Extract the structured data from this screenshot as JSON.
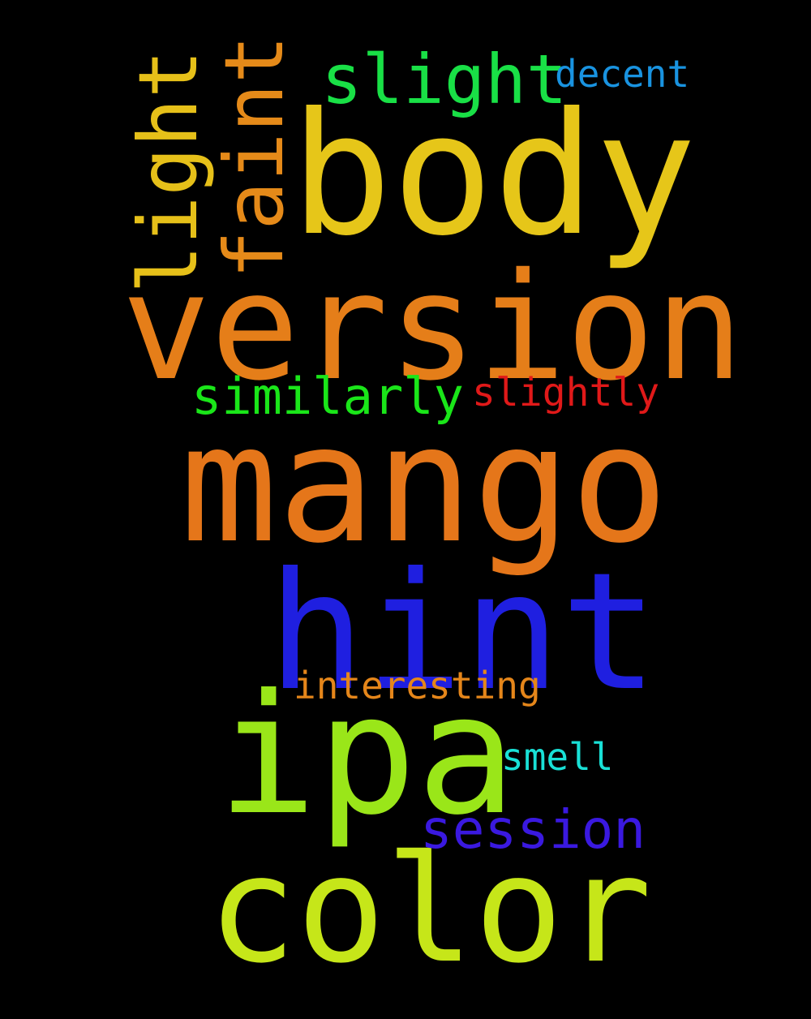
{
  "words": [
    {
      "key": "body",
      "text": "body",
      "color": "#e6c619"
    },
    {
      "key": "version",
      "text": "version",
      "color": "#e57e19"
    },
    {
      "key": "mango",
      "text": "mango",
      "color": "#e5761a"
    },
    {
      "key": "hint",
      "text": "hint",
      "color": "#1f1fe0"
    },
    {
      "key": "ipa",
      "text": "ipa",
      "color": "#9ae619"
    },
    {
      "key": "color",
      "text": "color",
      "color": "#c6e619"
    },
    {
      "key": "light",
      "text": "light",
      "color": "#e6c019"
    },
    {
      "key": "faint",
      "text": "faint",
      "color": "#e58a19"
    },
    {
      "key": "slight",
      "text": "slight",
      "color": "#19e046"
    },
    {
      "key": "decent",
      "text": "decent",
      "color": "#1993e0"
    },
    {
      "key": "similarly",
      "text": "similarly",
      "color": "#1ae619"
    },
    {
      "key": "slightly",
      "text": "slightly",
      "color": "#e01919"
    },
    {
      "key": "interesting",
      "text": "interesting",
      "color": "#e5861a"
    },
    {
      "key": "smell",
      "text": "smell",
      "color": "#19e0d6"
    },
    {
      "key": "session",
      "text": "session",
      "color": "#3a19e0"
    }
  ]
}
